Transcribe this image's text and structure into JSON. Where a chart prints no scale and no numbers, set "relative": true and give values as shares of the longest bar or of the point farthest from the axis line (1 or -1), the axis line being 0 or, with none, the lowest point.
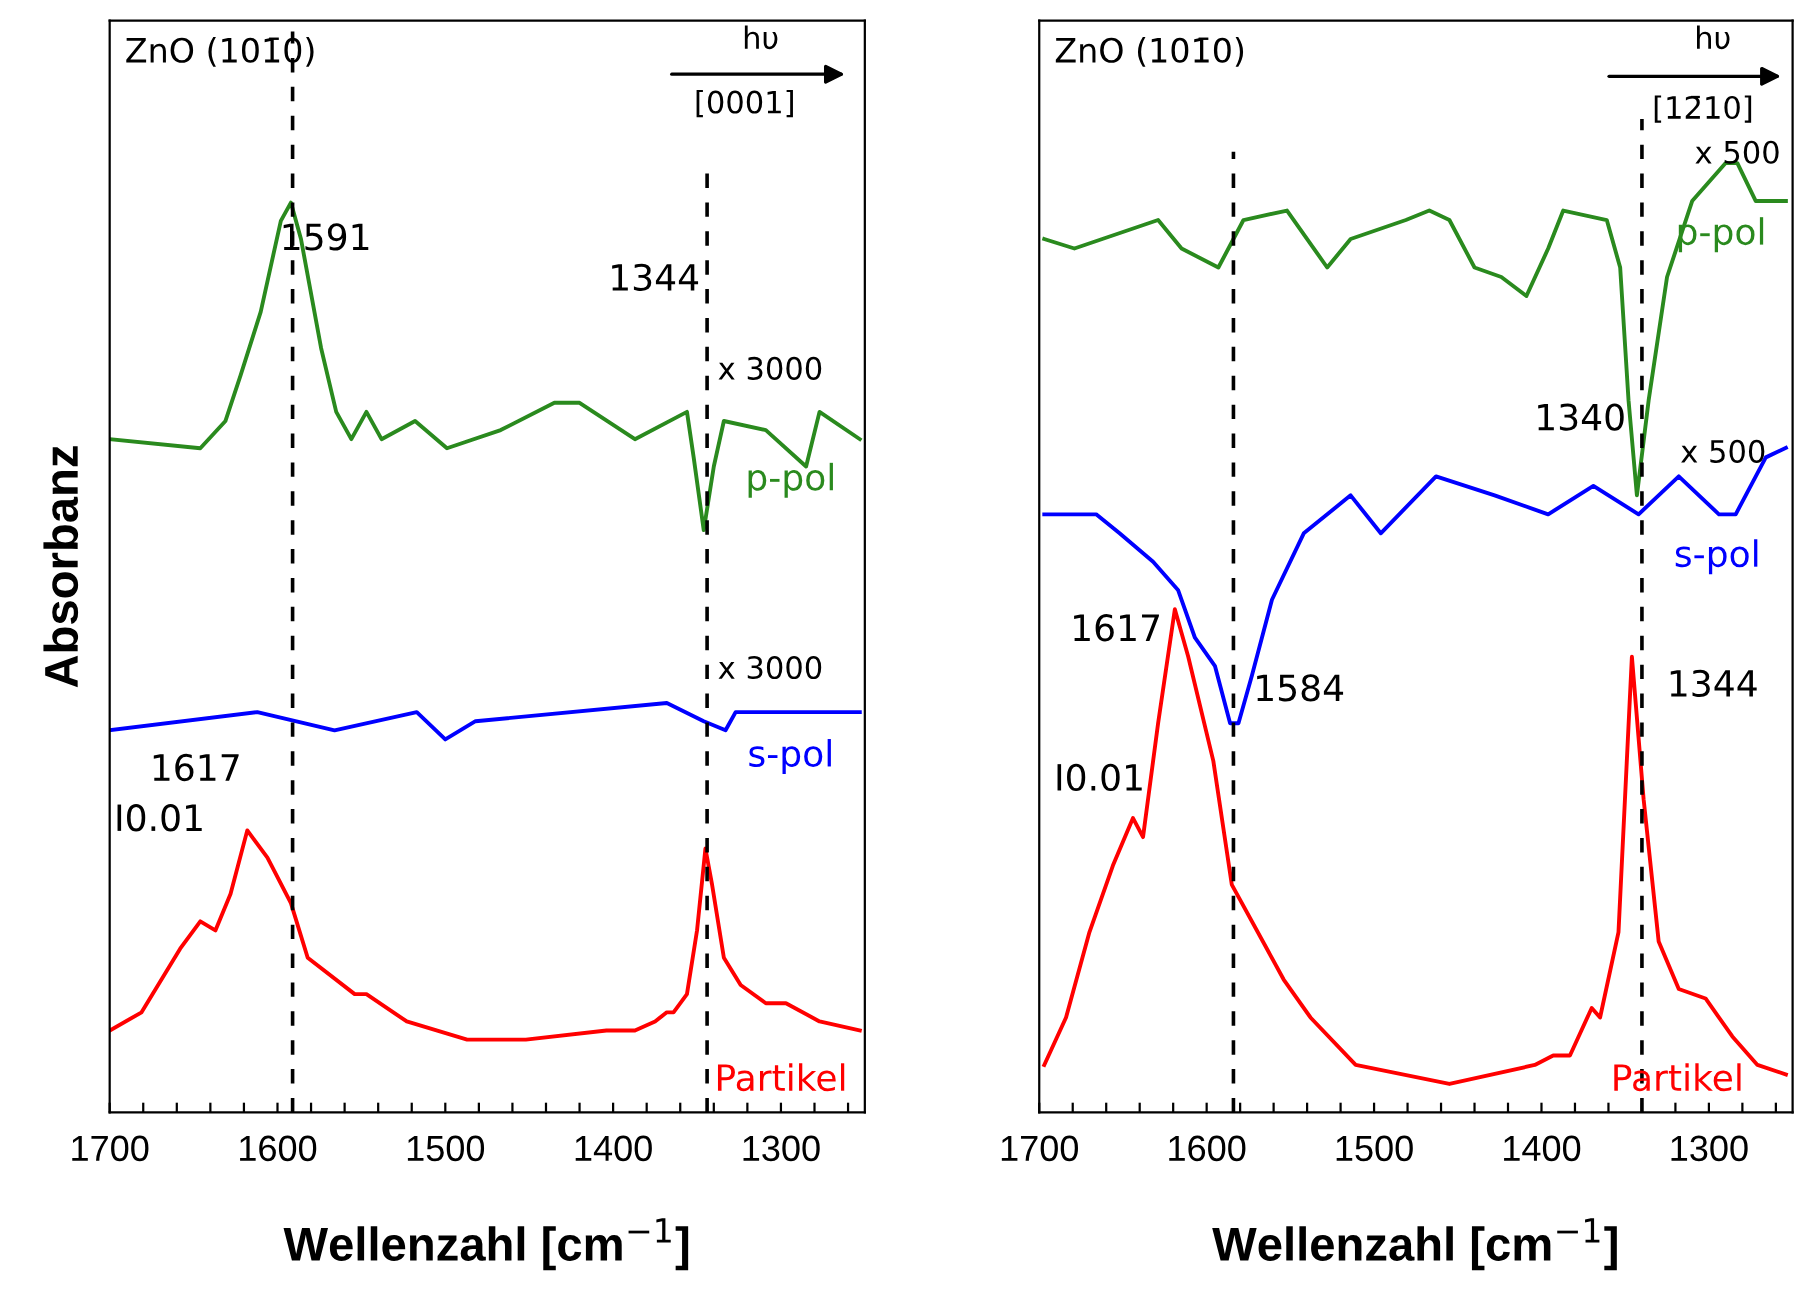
{
  "chart_data": [
    {
      "type": "line",
      "relative": true,
      "title": "ZnO (101̄0)",
      "xlabel": "Wellenzahl [cm$^{−1}$]",
      "ylabel": "Absorbanz",
      "tick_labels": "x",
      "grid": false,
      "legend": false,
      "marker": "none",
      "line_style": "solid",
      "xlim": [
        1700,
        1250
      ],
      "xticks": [
        1700,
        {
          "value": 1680,
          "label": null
        },
        {
          "value": 1660,
          "label": null
        },
        {
          "value": 1640,
          "label": null
        },
        {
          "value": 1620,
          "label": null
        },
        1600,
        {
          "value": 1580,
          "label": null
        },
        {
          "value": 1560,
          "label": null
        },
        {
          "value": 1540,
          "label": null
        },
        {
          "value": 1520,
          "label": null
        },
        1500,
        {
          "value": 1480,
          "label": null
        },
        {
          "value": 1460,
          "label": null
        },
        {
          "value": 1440,
          "label": null
        },
        {
          "value": 1420,
          "label": null
        },
        1400,
        {
          "value": 1380,
          "label": null
        },
        {
          "value": 1360,
          "label": null
        },
        {
          "value": 1340,
          "label": null
        },
        {
          "value": 1320,
          "label": null
        },
        1300,
        {
          "value": 1280,
          "label": null
        },
        {
          "value": 1260,
          "label": null
        }
      ],
      "series": [
        {
          "name": "p-pol",
          "color": "#2a8a1e",
          "x": [
            1700,
            1646,
            1631,
            1622,
            1610,
            1598,
            1592,
            1586,
            1574,
            1565,
            1556,
            1547,
            1538,
            1518,
            1499,
            1467,
            1435,
            1420,
            1387,
            1356,
            1352,
            1346,
            1340,
            1334,
            1309,
            1285,
            1277,
            1253
          ],
          "values": [
            0.74,
            0.73,
            0.76,
            0.81,
            0.88,
            0.98,
            1.0,
            0.96,
            0.84,
            0.77,
            0.74,
            0.77,
            0.74,
            0.76,
            0.73,
            0.75,
            0.78,
            0.78,
            0.74,
            0.77,
            0.72,
            0.64,
            0.71,
            0.76,
            0.75,
            0.71,
            0.77,
            0.74
          ]
        },
        {
          "name": "s-pol",
          "color": "#0000ff",
          "x": [
            1700,
            1612,
            1566,
            1517,
            1500,
            1482,
            1368,
            1346,
            1333,
            1327,
            1253
          ],
          "values": [
            0.42,
            0.44,
            0.42,
            0.44,
            0.41,
            0.43,
            0.45,
            0.43,
            0.42,
            0.44,
            0.44
          ]
        },
        {
          "name": "Partikel",
          "color": "#ff0000",
          "x": [
            1700,
            1681,
            1658,
            1646,
            1637,
            1628,
            1618,
            1606,
            1592,
            1582,
            1554,
            1547,
            1523,
            1487,
            1452,
            1404,
            1387,
            1375,
            1368,
            1364,
            1356,
            1350,
            1345,
            1341,
            1334,
            1324,
            1309,
            1297,
            1277,
            1253
          ],
          "values": [
            0.09,
            0.11,
            0.18,
            0.21,
            0.2,
            0.24,
            0.31,
            0.28,
            0.23,
            0.17,
            0.13,
            0.13,
            0.1,
            0.08,
            0.08,
            0.09,
            0.09,
            0.1,
            0.11,
            0.11,
            0.13,
            0.2,
            0.29,
            0.25,
            0.17,
            0.14,
            0.12,
            0.12,
            0.1,
            0.09
          ]
        }
      ],
      "ref_lines": [
        {
          "axis": "x",
          "value": 1591,
          "line_style": "dashed",
          "color": "#000000"
        },
        {
          "axis": "x",
          "value": 1344,
          "line_style": "dashed",
          "color": "#000000"
        }
      ],
      "annotations": [
        "hυ",
        "[0001]",
        "1591",
        "1344",
        "x 3000",
        "x 3000",
        "1617",
        "I0.01"
      ]
    },
    {
      "type": "line",
      "relative": true,
      "title": "ZnO (101̄0)",
      "xlabel": "Wellenzahl [cm$^{−1}$]",
      "tick_labels": "x",
      "grid": false,
      "legend": false,
      "marker": "none",
      "line_style": "solid",
      "xlim": [
        1700,
        1250
      ],
      "xticks": [
        1700,
        {
          "value": 1680,
          "label": null
        },
        {
          "value": 1660,
          "label": null
        },
        {
          "value": 1640,
          "label": null
        },
        {
          "value": 1620,
          "label": null
        },
        1600,
        {
          "value": 1580,
          "label": null
        },
        {
          "value": 1560,
          "label": null
        },
        {
          "value": 1540,
          "label": null
        },
        {
          "value": 1520,
          "label": null
        },
        1500,
        {
          "value": 1480,
          "label": null
        },
        {
          "value": 1460,
          "label": null
        },
        {
          "value": 1440,
          "label": null
        },
        {
          "value": 1420,
          "label": null
        },
        1400,
        {
          "value": 1380,
          "label": null
        },
        {
          "value": 1360,
          "label": null
        },
        {
          "value": 1340,
          "label": null
        },
        {
          "value": 1320,
          "label": null
        },
        1300,
        {
          "value": 1280,
          "label": null
        },
        {
          "value": 1260,
          "label": null
        }
      ],
      "series": [
        {
          "name": "p-pol",
          "color": "#2a8a1e",
          "x": [
            1697,
            1679,
            1629,
            1615,
            1593,
            1578,
            1552,
            1528,
            1514,
            1481,
            1467,
            1455,
            1440,
            1424,
            1409,
            1396,
            1387,
            1361,
            1353,
            1348,
            1343,
            1336,
            1325,
            1310,
            1290,
            1283,
            1272,
            1254
          ],
          "values": [
            0.92,
            0.91,
            0.94,
            0.91,
            0.89,
            0.94,
            0.95,
            0.89,
            0.92,
            0.94,
            0.95,
            0.94,
            0.89,
            0.88,
            0.86,
            0.91,
            0.95,
            0.94,
            0.89,
            0.75,
            0.65,
            0.75,
            0.88,
            0.96,
            1.0,
            1.0,
            0.96,
            0.96
          ]
        },
        {
          "name": "s-pol",
          "color": "#0000ff",
          "x": [
            1697,
            1666,
            1652,
            1632,
            1617,
            1607,
            1595,
            1586,
            1581,
            1573,
            1561,
            1542,
            1514,
            1496,
            1463,
            1428,
            1396,
            1369,
            1342,
            1318,
            1294,
            1284,
            1266,
            1254
          ],
          "values": [
            0.63,
            0.63,
            0.61,
            0.58,
            0.55,
            0.5,
            0.47,
            0.41,
            0.41,
            0.46,
            0.54,
            0.61,
            0.65,
            0.61,
            0.67,
            0.65,
            0.63,
            0.66,
            0.63,
            0.67,
            0.63,
            0.63,
            0.69,
            0.7
          ]
        },
        {
          "name": "Partikel",
          "color": "#ff0000",
          "x": [
            1697,
            1684,
            1670,
            1656,
            1644,
            1638,
            1629,
            1619,
            1611,
            1596,
            1585,
            1554,
            1538,
            1511,
            1455,
            1404,
            1393,
            1383,
            1370,
            1365,
            1354,
            1346,
            1339,
            1330,
            1318,
            1302,
            1286,
            1271,
            1254
          ],
          "values": [
            0.05,
            0.1,
            0.19,
            0.26,
            0.31,
            0.29,
            0.41,
            0.53,
            0.48,
            0.37,
            0.24,
            0.14,
            0.1,
            0.05,
            0.03,
            0.05,
            0.06,
            0.06,
            0.11,
            0.1,
            0.19,
            0.48,
            0.33,
            0.18,
            0.13,
            0.12,
            0.08,
            0.05,
            0.04
          ]
        }
      ],
      "ref_lines": [
        {
          "axis": "x",
          "value": 1584,
          "line_style": "dashed",
          "color": "#000000"
        },
        {
          "axis": "x",
          "value": 1340,
          "line_style": "dashed",
          "color": "#000000"
        }
      ],
      "annotations": [
        "hυ",
        "[12̄10]",
        "x 500",
        "1340",
        "x 500",
        "1617",
        "1584",
        "1344",
        "I0.01"
      ]
    }
  ]
}
